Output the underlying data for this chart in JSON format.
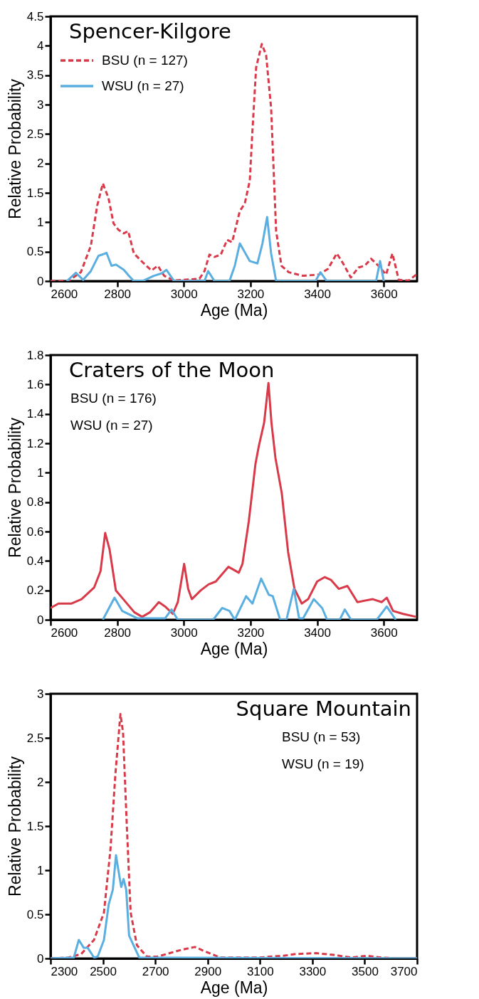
{
  "chart_data": [
    {
      "type": "line",
      "title": "Spencer-Kilgore",
      "xlabel": "Age (Ma)",
      "ylabel": "Relative Probability",
      "xlim": [
        2600,
        3700
      ],
      "xticks": [
        2600,
        2800,
        3000,
        3200,
        3400,
        3600
      ],
      "ylim": [
        0,
        4.5
      ],
      "yticks": [
        0,
        0.5,
        1,
        1.5,
        2,
        2.5,
        3,
        3.5,
        4,
        4.5
      ],
      "grid": false,
      "legend": "top left",
      "series": [
        {
          "name": "BSU (n = 127)",
          "color": "#d93a49",
          "line_style": "dashed",
          "x": [
            2600,
            2653,
            2691,
            2721,
            2740,
            2757,
            2774,
            2789,
            2804,
            2820,
            2833,
            2850,
            2880,
            2903,
            2922,
            2941,
            2971,
            3047,
            3062,
            3077,
            3092,
            3111,
            3130,
            3145,
            3168,
            3183,
            3198,
            3206,
            3217,
            3234,
            3247,
            3262,
            3277,
            3293,
            3315,
            3357,
            3406,
            3433,
            3459,
            3478,
            3501,
            3524,
            3543,
            3562,
            3584,
            3607,
            3626,
            3645,
            3675,
            3700
          ],
          "values": [
            0,
            0,
            0.15,
            0.6,
            1.28,
            1.66,
            1.41,
            0.98,
            0.87,
            0.81,
            0.85,
            0.47,
            0.3,
            0.18,
            0.26,
            0.09,
            0.01,
            0.04,
            0.17,
            0.45,
            0.41,
            0.45,
            0.7,
            0.66,
            1.19,
            1.32,
            1.71,
            2.56,
            3.63,
            4.03,
            3.84,
            2.94,
            0.85,
            0.26,
            0.15,
            0.09,
            0.11,
            0.21,
            0.47,
            0.3,
            0.06,
            0.23,
            0.26,
            0.38,
            0.26,
            0.11,
            0.47,
            0.02,
            0.01,
            0.12
          ]
        },
        {
          "name": "WSU (n = 27)",
          "color": "#5aaee0",
          "line_style": "solid",
          "x": [
            2649,
            2676,
            2698,
            2721,
            2744,
            2755,
            2768,
            2783,
            2796,
            2820,
            2835,
            2850,
            2880,
            2910,
            2933,
            2948,
            2971,
            3062,
            3073,
            3092,
            3137,
            3153,
            3168,
            3183,
            3198,
            3221,
            3236,
            3250,
            3262,
            3277,
            3395,
            3410,
            3429,
            3577,
            3589,
            3600
          ],
          "values": [
            0,
            0.14,
            0.02,
            0.17,
            0.43,
            0.45,
            0.48,
            0.26,
            0.28,
            0.19,
            0.09,
            0,
            0.01,
            0.09,
            0.13,
            0.19,
            0,
            0,
            0.17,
            0,
            0,
            0.26,
            0.64,
            0.49,
            0.34,
            0.3,
            0.64,
            1.09,
            0.47,
            0,
            0,
            0.15,
            0,
            0,
            0.34,
            0
          ]
        }
      ]
    },
    {
      "type": "line",
      "title": "Craters of the Moon",
      "xlabel": "Age (Ma)",
      "ylabel": "Relative Probability",
      "xlim": [
        2600,
        3700
      ],
      "xticks": [
        2600,
        2800,
        3000,
        3200,
        3400,
        3600
      ],
      "ylim": [
        0,
        1.8
      ],
      "yticks": [
        0,
        0.2,
        0.4,
        0.6,
        0.8,
        1,
        1.2,
        1.4,
        1.6,
        1.8
      ],
      "grid": false,
      "annotations": [
        "BSU (n = 176)",
        "WSU (n = 27)"
      ],
      "series": [
        {
          "color": "#d93a49",
          "line_style": "solid",
          "x": [
            2600,
            2624,
            2662,
            2693,
            2731,
            2750,
            2764,
            2777,
            2796,
            2822,
            2852,
            2875,
            2898,
            2925,
            2944,
            2967,
            2982,
            3001,
            3013,
            3024,
            3051,
            3074,
            3096,
            3134,
            3165,
            3176,
            3195,
            3215,
            3225,
            3241,
            3254,
            3263,
            3275,
            3294,
            3313,
            3332,
            3354,
            3373,
            3400,
            3423,
            3442,
            3465,
            3491,
            3521,
            3567,
            3594,
            3609,
            3628,
            3658,
            3697
          ],
          "values": [
            0.08,
            0.11,
            0.11,
            0.14,
            0.22,
            0.33,
            0.59,
            0.48,
            0.2,
            0.13,
            0.05,
            0.02,
            0.05,
            0.12,
            0.09,
            0.04,
            0.12,
            0.38,
            0.21,
            0.14,
            0.2,
            0.24,
            0.26,
            0.36,
            0.32,
            0.38,
            0.67,
            1.06,
            1.18,
            1.34,
            1.61,
            1.34,
            1.1,
            0.86,
            0.46,
            0.21,
            0.11,
            0.14,
            0.26,
            0.29,
            0.27,
            0.21,
            0.23,
            0.12,
            0.14,
            0.12,
            0.15,
            0.06,
            0.04,
            0.02
          ]
        },
        {
          "color": "#5aaee0",
          "line_style": "solid",
          "x": [
            2757,
            2792,
            2815,
            2860,
            2944,
            2963,
            2982,
            3088,
            3115,
            3137,
            3153,
            3187,
            3206,
            3232,
            3255,
            3267,
            3289,
            3308,
            3330,
            3346,
            3358,
            3390,
            3415,
            3430,
            3468,
            3483,
            3502,
            3579,
            3609,
            3636
          ],
          "values": [
            0,
            0.15,
            0.06,
            0.01,
            0.01,
            0.07,
            0,
            0,
            0.08,
            0.06,
            0,
            0.16,
            0.11,
            0.28,
            0.17,
            0.16,
            0,
            0,
            0.21,
            0.01,
            0.01,
            0.14,
            0.08,
            0,
            0,
            0.07,
            0,
            0,
            0.09,
            0
          ]
        }
      ]
    },
    {
      "type": "line",
      "title": "Square Mountain",
      "xlabel": "Age (Ma)",
      "ylabel": "Relative Probability",
      "xlim": [
        2300,
        3700
      ],
      "xticks": [
        2300,
        2500,
        2700,
        2900,
        3100,
        3300,
        3500,
        3700
      ],
      "ylim": [
        0,
        3
      ],
      "yticks": [
        0,
        0.5,
        1,
        1.5,
        2,
        2.5,
        3
      ],
      "grid": false,
      "annotations": [
        "BSU (n = 53)",
        "WSU (n = 19)"
      ],
      "series": [
        {
          "color": "#d93a49",
          "line_style": "dashed",
          "x": [
            2300,
            2369,
            2417,
            2466,
            2504,
            2529,
            2548,
            2567,
            2577,
            2591,
            2606,
            2630,
            2668,
            2707,
            2755,
            2803,
            2851,
            2890,
            2948,
            3093,
            3189,
            3237,
            3314,
            3382,
            3449,
            3507,
            3565,
            3623,
            3700
          ],
          "values": [
            0,
            0.01,
            0.05,
            0.21,
            0.52,
            1.24,
            2.1,
            2.77,
            2.56,
            1.53,
            0.52,
            0.15,
            0.02,
            0.02,
            0.06,
            0.1,
            0.13,
            0.08,
            0.01,
            0.01,
            0.03,
            0.05,
            0.06,
            0.04,
            0.01,
            0.03,
            0.01,
            0,
            0
          ]
        },
        {
          "color": "#5aaee0",
          "line_style": "solid",
          "x": [
            2300,
            2389,
            2408,
            2427,
            2442,
            2466,
            2480,
            2504,
            2522,
            2538,
            2550,
            2562,
            2570,
            2579,
            2589,
            2600,
            2639,
            3700
          ],
          "values": [
            0,
            0.01,
            0.21,
            0.12,
            0.12,
            0.01,
            0.02,
            0.21,
            0.61,
            0.78,
            1.17,
            0.95,
            0.81,
            0.9,
            0.78,
            0.26,
            0.01,
            0
          ]
        }
      ]
    }
  ]
}
